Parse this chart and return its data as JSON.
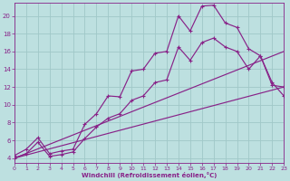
{
  "xlabel": "Windchill (Refroidissement éolien,°C)",
  "xlim": [
    0,
    23
  ],
  "ylim": [
    3.5,
    21.5
  ],
  "xtick_vals": [
    0,
    1,
    2,
    3,
    4,
    5,
    6,
    7,
    8,
    9,
    10,
    11,
    12,
    13,
    14,
    15,
    16,
    17,
    18,
    19,
    20,
    21,
    22,
    23
  ],
  "ytick_vals": [
    4,
    6,
    8,
    10,
    12,
    14,
    16,
    18,
    20
  ],
  "bg_color": "#bde0e0",
  "line_color": "#882288",
  "grid_color": "#a0c8c8",
  "line1_x": [
    0,
    1,
    2,
    3,
    4,
    5,
    6,
    7,
    8,
    9,
    10,
    11,
    12,
    13,
    14,
    15,
    16,
    17,
    18,
    19,
    20,
    21,
    22,
    23
  ],
  "line1_y": [
    4.3,
    5.0,
    6.3,
    4.5,
    4.8,
    5.0,
    7.8,
    9.0,
    11.0,
    10.9,
    13.8,
    14.0,
    15.8,
    16.0,
    20.0,
    18.3,
    21.1,
    21.2,
    19.2,
    18.7,
    16.3,
    15.5,
    12.5,
    11.0
  ],
  "line2_x": [
    0,
    1,
    2,
    3,
    4,
    5,
    6,
    7,
    8,
    9,
    10,
    11,
    12,
    13,
    14,
    15,
    16,
    17,
    18,
    19,
    20,
    21,
    22,
    23
  ],
  "line2_y": [
    4.0,
    4.5,
    5.8,
    4.2,
    4.4,
    4.7,
    6.2,
    7.5,
    8.5,
    9.0,
    10.5,
    11.0,
    12.5,
    12.8,
    16.5,
    15.0,
    17.0,
    17.5,
    16.5,
    16.0,
    14.0,
    15.5,
    12.2,
    12.0
  ],
  "line3_x": [
    0,
    23
  ],
  "line3_y": [
    4.0,
    16.0
  ],
  "line4_x": [
    0,
    23
  ],
  "line4_y": [
    4.0,
    12.0
  ]
}
